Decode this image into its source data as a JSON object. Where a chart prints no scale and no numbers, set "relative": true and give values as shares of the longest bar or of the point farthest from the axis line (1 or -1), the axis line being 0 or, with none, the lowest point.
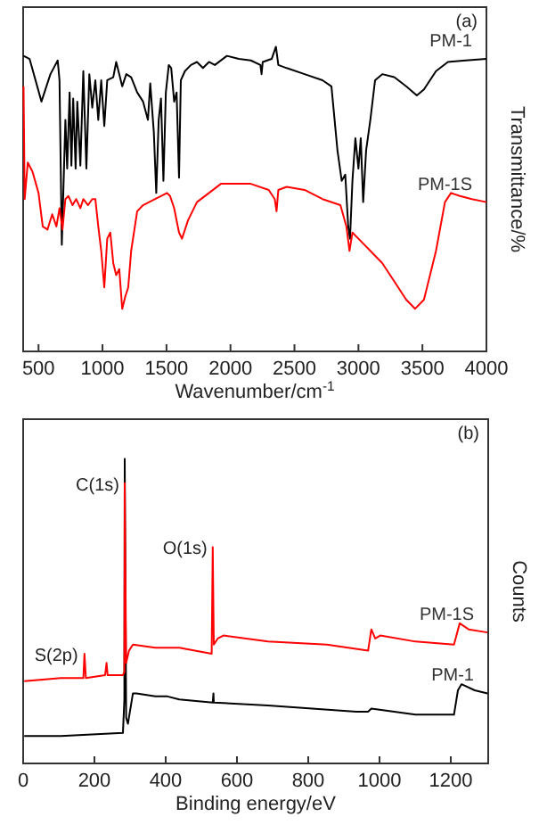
{
  "chart_data": [
    {
      "type": "line",
      "xlabel": "Wavenumber/cm$^{-1}$",
      "ylabel": "Transmittance/%",
      "relative": true,
      "xlim": [
        380,
        4000
      ],
      "xticks": [
        500,
        1000,
        1500,
        2000,
        2500,
        3000,
        3500,
        4000
      ],
      "annotations": [
        "(a)"
      ],
      "series": [
        {
          "name": "PM-1",
          "color": "#000000",
          "x": [
            383,
            430,
            523,
            593,
            650,
            664,
            682,
            710,
            724,
            743,
            757,
            771,
            790,
            803,
            827,
            850,
            874,
            897,
            920,
            944,
            967,
            990,
            1014,
            1037,
            1084,
            1107,
            1131,
            1154,
            1186,
            1224,
            1271,
            1317,
            1355,
            1373,
            1401,
            1420,
            1439,
            1457,
            1476,
            1495,
            1518,
            1537,
            1560,
            1579,
            1598,
            1612,
            1644,
            1691,
            1738,
            1785,
            1832,
            1878,
            1972,
            2065,
            2159,
            2234,
            2243,
            2252,
            2322,
            2355,
            2374,
            2439,
            2579,
            2719,
            2789,
            2836,
            2869,
            2897,
            2920,
            2934,
            2953,
            2976,
            3000,
            3018,
            3037,
            3060,
            3093,
            3130,
            3186,
            3280,
            3373,
            3456,
            3512,
            3606,
            3699,
            3839,
            4000
          ],
          "values": [
            0.97,
            0.96,
            0.82,
            0.91,
            0.955,
            0.89,
            0.35,
            0.76,
            0.6,
            0.85,
            0.61,
            0.83,
            0.6,
            0.82,
            0.61,
            0.92,
            0.6,
            0.91,
            0.8,
            0.89,
            0.76,
            0.89,
            0.74,
            0.89,
            0.9,
            0.95,
            0.91,
            0.87,
            0.91,
            0.9,
            0.85,
            0.82,
            0.76,
            0.88,
            0.72,
            0.52,
            0.76,
            0.83,
            0.56,
            0.85,
            0.94,
            0.93,
            0.82,
            0.85,
            0.57,
            0.89,
            0.92,
            0.94,
            0.95,
            0.93,
            0.95,
            0.94,
            0.97,
            0.96,
            0.955,
            0.94,
            0.91,
            0.95,
            0.96,
            1.0,
            0.94,
            0.93,
            0.91,
            0.89,
            0.87,
            0.66,
            0.56,
            0.58,
            0.41,
            0.37,
            0.56,
            0.7,
            0.6,
            0.7,
            0.49,
            0.66,
            0.76,
            0.89,
            0.91,
            0.9,
            0.87,
            0.84,
            0.86,
            0.92,
            0.95,
            0.955,
            0.96
          ]
        },
        {
          "name": "PM-1S",
          "color": "#ff0000",
          "x": [
            383,
            392,
            416,
            453,
            500,
            533,
            570,
            607,
            640,
            664,
            687,
            710,
            734,
            766,
            794,
            827,
            850,
            887,
            920,
            944,
            967,
            990,
            1014,
            1037,
            1061,
            1084,
            1107,
            1131,
            1154,
            1178,
            1201,
            1224,
            1271,
            1317,
            1364,
            1411,
            1457,
            1504,
            1528,
            1560,
            1598,
            1621,
            1668,
            1738,
            1832,
            1925,
            2018,
            2159,
            2299,
            2346,
            2360,
            2374,
            2439,
            2579,
            2719,
            2859,
            2906,
            2930,
            2953,
            3000,
            3093,
            3186,
            3280,
            3373,
            3443,
            3512,
            3606,
            3676,
            3723,
            3793,
            3886,
            4000
          ],
          "values": [
            0.87,
            0.5,
            0.62,
            0.59,
            0.52,
            0.41,
            0.4,
            0.45,
            0.41,
            0.47,
            0.4,
            0.5,
            0.51,
            0.48,
            0.5,
            0.47,
            0.5,
            0.48,
            0.5,
            0.5,
            0.41,
            0.33,
            0.21,
            0.37,
            0.39,
            0.29,
            0.25,
            0.27,
            0.14,
            0.18,
            0.21,
            0.33,
            0.46,
            0.48,
            0.49,
            0.5,
            0.51,
            0.52,
            0.51,
            0.47,
            0.39,
            0.37,
            0.43,
            0.49,
            0.52,
            0.55,
            0.55,
            0.55,
            0.53,
            0.5,
            0.46,
            0.53,
            0.54,
            0.53,
            0.5,
            0.48,
            0.41,
            0.33,
            0.39,
            0.37,
            0.33,
            0.29,
            0.23,
            0.17,
            0.14,
            0.17,
            0.33,
            0.49,
            0.52,
            0.51,
            0.5,
            0.49
          ]
        }
      ]
    },
    {
      "type": "line",
      "xlabel": "Binding energy/eV",
      "ylabel": "Counts",
      "relative": true,
      "xlim": [
        0,
        1305
      ],
      "xticks": [
        0,
        200,
        400,
        600,
        800,
        1000,
        1200
      ],
      "annotations": [
        "(b)",
        {
          "text": "C(1s)",
          "x": 285,
          "y": 0.92
        },
        {
          "text": "O(1s)",
          "x": 532,
          "y": 0.71
        },
        {
          "text": "S(2p)",
          "x": 169,
          "y": 0.36
        }
      ],
      "series": [
        {
          "name": "PM-1",
          "color": "#000000",
          "x": [
            3,
            7,
            106,
            280,
            284,
            285,
            289,
            294,
            308,
            318,
            371,
            405,
            438,
            532,
            534,
            535,
            687,
            935,
            968,
            977,
            1101,
            1209,
            1220,
            1230,
            1267,
            1303
          ],
          "values": [
            0.09,
            0.09,
            0.09,
            0.1,
            0.21,
            1.0,
            0.15,
            0.13,
            0.23,
            0.23,
            0.22,
            0.22,
            0.21,
            0.2,
            0.23,
            0.2,
            0.19,
            0.17,
            0.17,
            0.18,
            0.16,
            0.16,
            0.24,
            0.26,
            0.24,
            0.23
          ]
        },
        {
          "name": "PM-1S",
          "color": "#ff0000",
          "x": [
            3,
            106,
            169,
            172,
            176,
            230,
            234,
            237,
            280,
            284,
            285,
            289,
            297,
            308,
            371,
            438,
            529,
            532,
            535,
            546,
            562,
            687,
            852,
            968,
            977,
            988,
            1002,
            1101,
            1209,
            1225,
            1250,
            1303
          ],
          "values": [
            0.27,
            0.28,
            0.28,
            0.36,
            0.28,
            0.29,
            0.33,
            0.29,
            0.29,
            0.3,
            0.92,
            0.33,
            0.37,
            0.39,
            0.38,
            0.38,
            0.36,
            0.71,
            0.39,
            0.41,
            0.42,
            0.4,
            0.39,
            0.37,
            0.44,
            0.41,
            0.42,
            0.4,
            0.39,
            0.46,
            0.44,
            0.43
          ]
        }
      ]
    }
  ]
}
